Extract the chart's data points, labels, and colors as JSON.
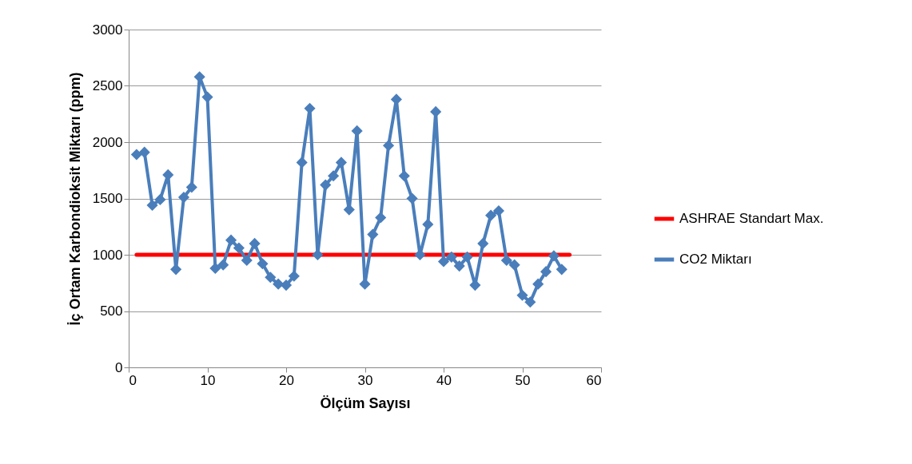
{
  "chart_data": {
    "type": "line",
    "xlabel": "Ölçüm Sayısı",
    "ylabel": "İç Ortam Karbondioksit Miktarı (ppm)",
    "xlim": [
      0,
      60
    ],
    "xticks": [
      0,
      10,
      20,
      30,
      40,
      50,
      60
    ],
    "ylim": [
      0,
      3000
    ],
    "yticks": [
      0,
      500,
      1000,
      1500,
      2000,
      2500,
      3000
    ],
    "grid": "y",
    "legend": "right",
    "marker": "diamond",
    "line_style": "solid",
    "series": [
      {
        "name": "ASHRAE Standart Max.",
        "color": "#ff0000",
        "marker": "none",
        "x": [
          1,
          56
        ],
        "values": [
          1000,
          1000
        ]
      },
      {
        "name": "CO2 Miktarı",
        "color": "#4a7ebb",
        "x": [
          1,
          2,
          3,
          4,
          5,
          6,
          7,
          8,
          9,
          10,
          11,
          12,
          13,
          14,
          15,
          16,
          17,
          18,
          19,
          20,
          21,
          22,
          23,
          24,
          25,
          26,
          27,
          28,
          29,
          30,
          31,
          32,
          33,
          34,
          35,
          36,
          37,
          38,
          39,
          40,
          41,
          42,
          43,
          44,
          45,
          46,
          47,
          48,
          49,
          50,
          51,
          52,
          53,
          54,
          55
        ],
        "values": [
          1890,
          1910,
          1440,
          1490,
          1710,
          870,
          1510,
          1600,
          2580,
          2400,
          880,
          910,
          1130,
          1060,
          950,
          1100,
          920,
          800,
          740,
          730,
          810,
          1820,
          2300,
          1000,
          1620,
          1700,
          1820,
          1400,
          2100,
          740,
          1180,
          1330,
          1970,
          2380,
          1700,
          1500,
          1000,
          1270,
          2270,
          940,
          980,
          900,
          980,
          730,
          1100,
          1350,
          1390,
          950,
          910,
          640,
          580,
          740,
          850,
          990,
          870
        ]
      }
    ]
  }
}
